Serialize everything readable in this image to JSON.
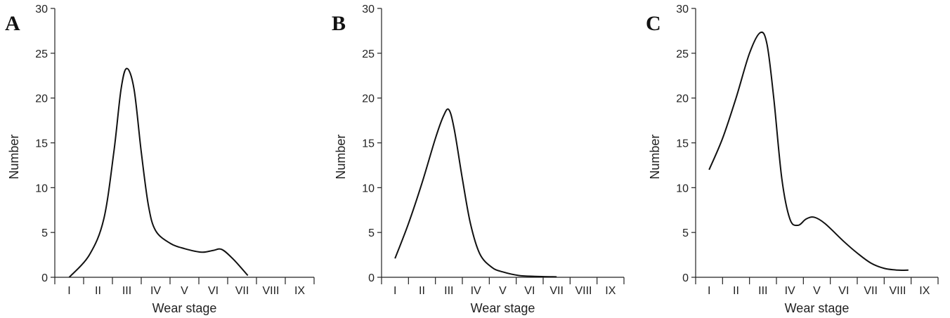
{
  "chart_data": [
    {
      "panel": "A",
      "type": "line",
      "xlabel": "Wear stage",
      "ylabel": "Number",
      "ylim": [
        0,
        30
      ],
      "yticks": [
        0,
        5,
        10,
        15,
        20,
        25,
        30
      ],
      "categories": [
        "I",
        "II",
        "III",
        "IV",
        "V",
        "VI",
        "VII",
        "VIII",
        "IX"
      ],
      "curve_points": [
        [
          0,
          0
        ],
        [
          0.7,
          2.5
        ],
        [
          1.2,
          6.5
        ],
        [
          1.55,
          14
        ],
        [
          1.8,
          21
        ],
        [
          2.0,
          23.3
        ],
        [
          2.25,
          21
        ],
        [
          2.5,
          14
        ],
        [
          2.75,
          8
        ],
        [
          3.0,
          5.2
        ],
        [
          3.5,
          3.8
        ],
        [
          4.0,
          3.2
        ],
        [
          4.6,
          2.8
        ],
        [
          5.0,
          3.0
        ],
        [
          5.3,
          3.1
        ],
        [
          5.7,
          2.0
        ],
        [
          6.2,
          0.2
        ]
      ],
      "grid": false
    },
    {
      "panel": "B",
      "type": "line",
      "xlabel": "Wear stage",
      "ylabel": "Number",
      "ylim": [
        0,
        30
      ],
      "yticks": [
        0,
        5,
        10,
        15,
        20,
        25,
        30
      ],
      "categories": [
        "I",
        "II",
        "III",
        "IV",
        "V",
        "VI",
        "VII",
        "VIII",
        "IX"
      ],
      "curve_points": [
        [
          0,
          2.1
        ],
        [
          0.5,
          6
        ],
        [
          1.0,
          10.5
        ],
        [
          1.5,
          15.5
        ],
        [
          1.8,
          18
        ],
        [
          2.0,
          18.7
        ],
        [
          2.2,
          16.5
        ],
        [
          2.5,
          11
        ],
        [
          2.8,
          6
        ],
        [
          3.15,
          2.6
        ],
        [
          3.6,
          1.1
        ],
        [
          4.0,
          0.6
        ],
        [
          4.6,
          0.2
        ],
        [
          5.2,
          0.1
        ],
        [
          6.0,
          0.05
        ]
      ],
      "grid": false
    },
    {
      "panel": "C",
      "type": "line",
      "xlabel": "Wear stage",
      "ylabel": "Number",
      "ylim": [
        0,
        30
      ],
      "yticks": [
        0,
        5,
        10,
        15,
        20,
        25,
        30
      ],
      "categories": [
        "I",
        "II",
        "III",
        "IV",
        "V",
        "VI",
        "VII",
        "VIII",
        "IX"
      ],
      "curve_points": [
        [
          0,
          12
        ],
        [
          0.5,
          15.5
        ],
        [
          1.0,
          20
        ],
        [
          1.5,
          25
        ],
        [
          1.9,
          27.3
        ],
        [
          2.15,
          26
        ],
        [
          2.4,
          20
        ],
        [
          2.7,
          11
        ],
        [
          3.0,
          6.5
        ],
        [
          3.3,
          5.8
        ],
        [
          3.6,
          6.5
        ],
        [
          3.9,
          6.7
        ],
        [
          4.3,
          6.0
        ],
        [
          5.0,
          4.0
        ],
        [
          5.5,
          2.7
        ],
        [
          6.0,
          1.6
        ],
        [
          6.5,
          1.0
        ],
        [
          7.0,
          0.8
        ],
        [
          7.4,
          0.8
        ]
      ],
      "grid": false
    }
  ]
}
